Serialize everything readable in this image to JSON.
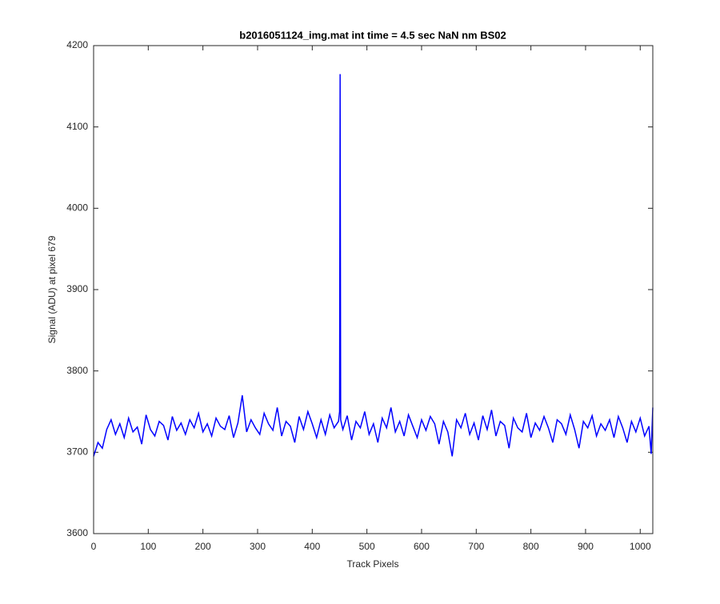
{
  "chart_data": {
    "type": "line",
    "title": "b2016051124_img.mat int time = 4.5 sec  NaN nm BS02",
    "xlabel": "Track Pixels",
    "ylabel": "Signal (ADU) at pixel 679",
    "xlim": [
      0,
      1023
    ],
    "xticks": [
      0,
      100,
      200,
      300,
      400,
      500,
      600,
      700,
      800,
      900,
      1000
    ],
    "ylim": [
      3600,
      4200
    ],
    "yticks": [
      3600,
      3700,
      3800,
      3900,
      4000,
      4100,
      4200
    ],
    "grid": false,
    "x": [
      0,
      8,
      16,
      24,
      32,
      40,
      48,
      56,
      64,
      72,
      80,
      88,
      96,
      104,
      112,
      120,
      128,
      136,
      144,
      152,
      160,
      168,
      176,
      184,
      192,
      200,
      208,
      216,
      224,
      232,
      240,
      248,
      256,
      264,
      272,
      280,
      288,
      296,
      304,
      312,
      320,
      328,
      336,
      344,
      352,
      360,
      368,
      376,
      384,
      392,
      400,
      408,
      416,
      424,
      432,
      440,
      448,
      450,
      451,
      452,
      456,
      464,
      472,
      480,
      488,
      496,
      504,
      512,
      520,
      528,
      536,
      544,
      552,
      560,
      568,
      576,
      584,
      592,
      600,
      608,
      616,
      624,
      632,
      640,
      648,
      656,
      664,
      672,
      680,
      688,
      696,
      704,
      712,
      720,
      728,
      736,
      744,
      752,
      760,
      768,
      776,
      784,
      792,
      800,
      808,
      816,
      824,
      832,
      840,
      848,
      856,
      864,
      872,
      880,
      888,
      896,
      904,
      912,
      920,
      928,
      936,
      944,
      952,
      960,
      968,
      976,
      984,
      992,
      1000,
      1008,
      1016,
      1020,
      1023
    ],
    "series": [
      {
        "color": "#0000ff",
        "values": [
          3695,
          3712,
          3705,
          3728,
          3740,
          3722,
          3735,
          3718,
          3742,
          3725,
          3731,
          3710,
          3746,
          3728,
          3720,
          3738,
          3733,
          3715,
          3744,
          3727,
          3736,
          3722,
          3740,
          3730,
          3748,
          3725,
          3735,
          3720,
          3742,
          3732,
          3728,
          3745,
          3718,
          3736,
          3770,
          3725,
          3740,
          3730,
          3722,
          3748,
          3735,
          3727,
          3755,
          3720,
          3738,
          3732,
          3712,
          3744,
          3728,
          3750,
          3735,
          3718,
          3740,
          3722,
          3746,
          3730,
          3738,
          3750,
          4165,
          3740,
          3728,
          3745,
          3715,
          3738,
          3730,
          3750,
          3722,
          3735,
          3712,
          3742,
          3730,
          3755,
          3725,
          3738,
          3720,
          3746,
          3732,
          3718,
          3740,
          3727,
          3744,
          3735,
          3710,
          3738,
          3725,
          3695,
          3740,
          3730,
          3748,
          3722,
          3736,
          3715,
          3745,
          3728,
          3752,
          3720,
          3738,
          3733,
          3705,
          3742,
          3730,
          3725,
          3748,
          3718,
          3736,
          3727,
          3744,
          3730,
          3712,
          3740,
          3735,
          3722,
          3746,
          3728,
          3705,
          3738,
          3730,
          3745,
          3720,
          3735,
          3727,
          3740,
          3718,
          3744,
          3730,
          3712,
          3738,
          3725,
          3742,
          3720,
          3732,
          3698,
          3755
        ]
      }
    ]
  }
}
